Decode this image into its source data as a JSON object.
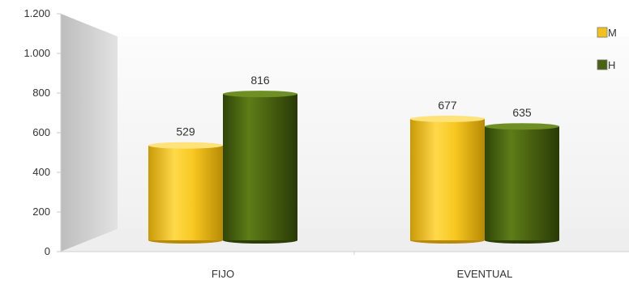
{
  "chart_data": {
    "type": "bar",
    "title": "",
    "xlabel": "",
    "ylabel": "",
    "categories": [
      "FIJO",
      "EVENTUAL"
    ],
    "series": [
      {
        "name": "M",
        "values": [
          529,
          677
        ],
        "color": "#f2c21a"
      },
      {
        "name": "H",
        "values": [
          816,
          635
        ],
        "color": "#4a6310"
      }
    ],
    "data_labels": [
      [
        "529",
        "677"
      ],
      [
        "816",
        "635"
      ]
    ],
    "ylim": [
      0,
      1200
    ],
    "yticks": [
      0,
      200,
      400,
      600,
      800,
      1000,
      1200
    ],
    "ytick_labels": [
      "0",
      "200",
      "400",
      "600",
      "800",
      "1.000",
      "1.200"
    ],
    "grid": false,
    "legend_position": "top-right",
    "style": "3d-cylinder"
  }
}
